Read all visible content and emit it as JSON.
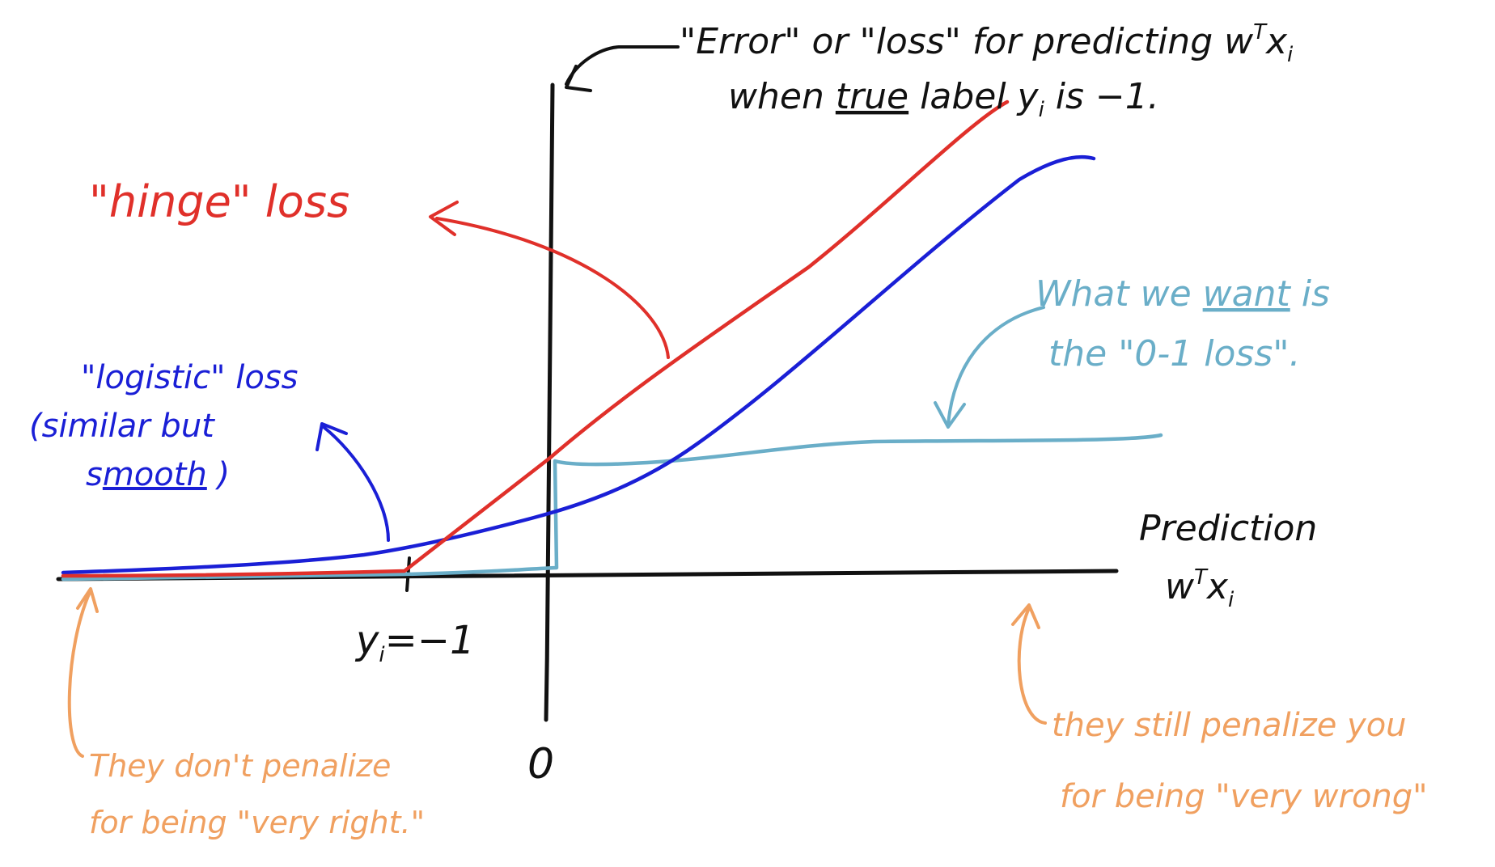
{
  "annotations": {
    "title_line1": "\"Error\" or \"loss\" for predicting w",
    "title_line1_sup": "T",
    "title_line1_tail": "x",
    "title_line1_sub": "i",
    "title_line2_a": "when ",
    "title_line2_true": "true",
    "title_line2_b": " label y",
    "title_line2_sub": "i",
    "title_line2_c": " is −1.",
    "hinge_label": "\"hinge\" loss",
    "logistic_line1": "\"logistic\" loss",
    "logistic_line2": "(similar but",
    "logistic_line3_a": "s",
    "logistic_line3_smooth": "mooth",
    "logistic_line3_b": " )",
    "zero_one_line1_a": "What we ",
    "zero_one_line1_want": "want",
    "zero_one_line1_b": " is",
    "zero_one_line2": "the \"0-1 loss\".",
    "xaxis_line1": "Prediction",
    "xaxis_line2": "w",
    "xaxis_line2_sup": "T",
    "xaxis_line2_tail": "x",
    "xaxis_line2_sub": "i",
    "tick_minus1_a": "y",
    "tick_minus1_sub": "i",
    "tick_minus1_b": "=−1",
    "tick_zero": "0",
    "left_note_line1": "They don't penalize",
    "left_note_line2": "for being \"very right.\"",
    "right_note_line1": "they still penalize you",
    "right_note_line2": "for being \"very wrong\""
  },
  "colors": {
    "axis": "#111111",
    "hinge": "#e0302a",
    "logistic": "#1a1fd6",
    "zero_one": "#6aaec8",
    "notes": "#f0a060",
    "title": "#111111"
  }
}
